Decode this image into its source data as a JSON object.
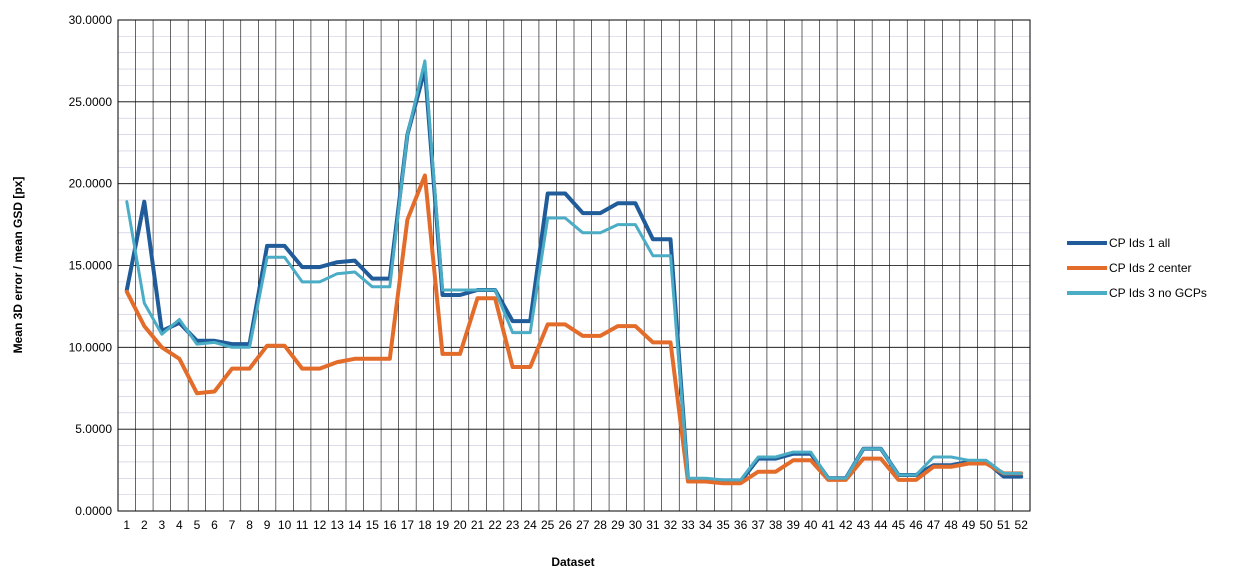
{
  "chart_data": {
    "type": "line",
    "xlabel": "Dataset",
    "ylabel": "Mean 3D error / mean GSD [px]",
    "ylim": [
      0,
      30
    ],
    "y_ticks": [
      "0.0000",
      "5.0000",
      "10.0000",
      "15.0000",
      "20.0000",
      "25.0000",
      "30.0000"
    ],
    "categories": [
      "1",
      "2",
      "3",
      "4",
      "5",
      "6",
      "7",
      "8",
      "9",
      "10",
      "11",
      "12",
      "13",
      "14",
      "15",
      "16",
      "17",
      "18",
      "19",
      "20",
      "21",
      "22",
      "23",
      "24",
      "25",
      "26",
      "27",
      "28",
      "29",
      "30",
      "31",
      "32",
      "33",
      "34",
      "35",
      "36",
      "37",
      "38",
      "39",
      "40",
      "41",
      "42",
      "43",
      "44",
      "45",
      "46",
      "47",
      "48",
      "49",
      "50",
      "51",
      "52"
    ],
    "grid": true,
    "legend_position": "right",
    "series": [
      {
        "name": "CP Ids 1 all",
        "color": "#1F5C99",
        "values": [
          13.5,
          18.9,
          11.0,
          11.5,
          10.4,
          10.4,
          10.2,
          10.2,
          16.2,
          16.2,
          14.9,
          14.9,
          15.2,
          15.3,
          14.2,
          14.2,
          23.0,
          27.0,
          13.2,
          13.2,
          13.5,
          13.5,
          11.6,
          11.6,
          19.4,
          19.4,
          18.2,
          18.2,
          18.8,
          18.8,
          16.6,
          16.6,
          1.9,
          1.9,
          1.8,
          1.8,
          3.2,
          3.2,
          3.5,
          3.5,
          2.0,
          2.0,
          3.8,
          3.8,
          2.2,
          2.2,
          2.8,
          2.8,
          3.0,
          3.0,
          2.1,
          2.1
        ]
      },
      {
        "name": "CP Ids 2 center",
        "color": "#E36C2B",
        "values": [
          13.4,
          11.3,
          10.0,
          9.3,
          7.2,
          7.3,
          8.7,
          8.7,
          10.1,
          10.1,
          8.7,
          8.7,
          9.1,
          9.3,
          9.3,
          9.3,
          17.8,
          20.5,
          9.6,
          9.6,
          13.0,
          13.0,
          8.8,
          8.8,
          11.4,
          11.4,
          10.7,
          10.7,
          11.3,
          11.3,
          10.3,
          10.3,
          1.8,
          1.8,
          1.7,
          1.7,
          2.4,
          2.4,
          3.1,
          3.1,
          1.9,
          1.9,
          3.2,
          3.2,
          1.9,
          1.9,
          2.7,
          2.7,
          2.9,
          2.9,
          2.3,
          2.3
        ]
      },
      {
        "name": "CP Ids 3 no GCPs",
        "color": "#4BACC6",
        "values": [
          18.9,
          12.7,
          10.8,
          11.7,
          10.2,
          10.3,
          10.0,
          10.0,
          15.5,
          15.5,
          14.0,
          14.0,
          14.5,
          14.6,
          13.7,
          13.7,
          23.0,
          27.5,
          13.5,
          13.5,
          13.5,
          13.5,
          10.9,
          10.9,
          17.9,
          17.9,
          17.0,
          17.0,
          17.5,
          17.5,
          15.6,
          15.6,
          2.0,
          2.0,
          1.9,
          1.9,
          3.3,
          3.3,
          3.6,
          3.6,
          2.0,
          2.0,
          3.8,
          3.8,
          2.2,
          2.2,
          3.3,
          3.3,
          3.1,
          3.1,
          2.3,
          2.3
        ]
      }
    ]
  }
}
